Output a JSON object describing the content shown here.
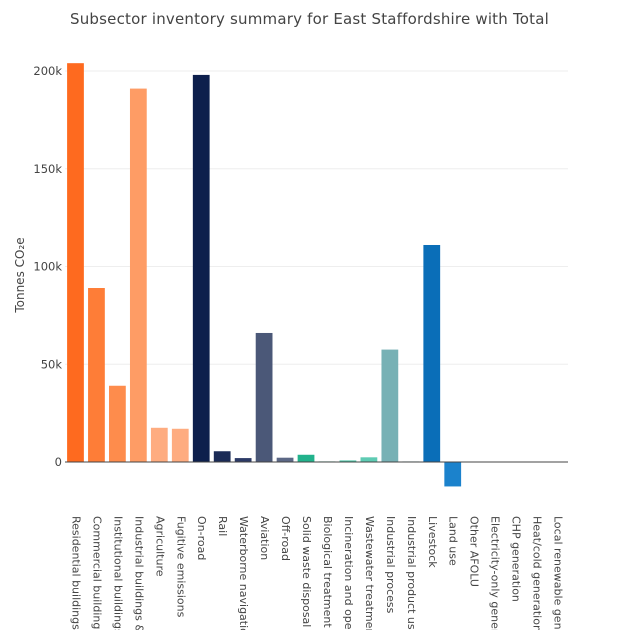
{
  "chart_data": {
    "type": "bar",
    "title": "Subsector inventory summary for East Staffordshire with Total",
    "xlabel": "",
    "ylabel": "Tonnes CO₂e",
    "ylim": [
      -16000,
      208000
    ],
    "yticks": [
      0,
      50000,
      100000,
      150000,
      200000
    ],
    "ytick_labels": [
      "0",
      "50k",
      "100k",
      "150k",
      "200k"
    ],
    "grid": true,
    "categories": [
      "Residential buildings",
      "Commercial buildings &",
      "Institutional buildings &",
      "Industrial buildings & fa",
      "Agriculture",
      "Fugitive emissions",
      "On-road",
      "Rail",
      "Waterborne navigation",
      "Aviation",
      "Off-road",
      "Solid waste disposal",
      "Biological treatment",
      "Incineration and open b",
      "Wastewater treatment a",
      "Industrial process",
      "Industrial product use",
      "Livestock",
      "Land use",
      "Other AFOLU",
      "Electricity-only generat",
      "CHP generation",
      "Heat/cold generation",
      "Local renewable genera"
    ],
    "values": [
      204000,
      89000,
      39000,
      191000,
      17500,
      17000,
      198000,
      5500,
      2000,
      66000,
      2200,
      3700,
      300,
      800,
      2400,
      57500,
      300,
      111000,
      -12500,
      0,
      0,
      0,
      0,
      0
    ],
    "colors": [
      "#fe6a1f",
      "#fe7d37",
      "#fe8c4c",
      "#fe9c65",
      "#feac80",
      "#feac80",
      "#0d1f4c",
      "#1b2b56",
      "#2c3a66",
      "#4b5878",
      "#5c6886",
      "#22b28c",
      "#32ba98",
      "#48c3a5",
      "#5ecbb3",
      "#77b1b5",
      "#88bdc1",
      "#0a6eb8",
      "#1b82cc",
      "#3394d6",
      "#4aa2dc",
      "#62b0e2",
      "#78bde6",
      "#8ec9ea"
    ]
  }
}
